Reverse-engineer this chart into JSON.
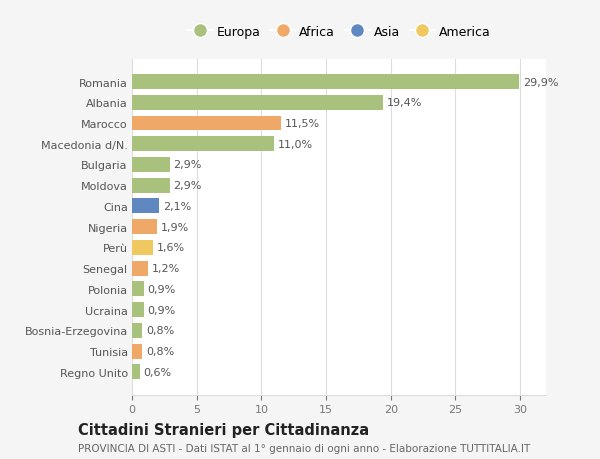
{
  "countries": [
    "Romania",
    "Albania",
    "Marocco",
    "Macedonia d/N.",
    "Bulgaria",
    "Moldova",
    "Cina",
    "Nigeria",
    "Perù",
    "Senegal",
    "Polonia",
    "Ucraina",
    "Bosnia-Erzegovina",
    "Tunisia",
    "Regno Unito"
  ],
  "values": [
    29.9,
    19.4,
    11.5,
    11.0,
    2.9,
    2.9,
    2.1,
    1.9,
    1.6,
    1.2,
    0.9,
    0.9,
    0.8,
    0.8,
    0.6
  ],
  "labels": [
    "29,9%",
    "19,4%",
    "11,5%",
    "11,0%",
    "2,9%",
    "2,9%",
    "2,1%",
    "1,9%",
    "1,6%",
    "1,2%",
    "0,9%",
    "0,9%",
    "0,8%",
    "0,8%",
    "0,6%"
  ],
  "continents": [
    "Europa",
    "Europa",
    "Africa",
    "Europa",
    "Europa",
    "Europa",
    "Asia",
    "Africa",
    "America",
    "Africa",
    "Europa",
    "Europa",
    "Europa",
    "Africa",
    "Europa"
  ],
  "continent_colors": {
    "Europa": "#a8c17c",
    "Africa": "#f0a868",
    "Asia": "#6088c0",
    "America": "#f0c860"
  },
  "legend_order": [
    "Europa",
    "Africa",
    "Asia",
    "America"
  ],
  "title": "Cittadini Stranieri per Cittadinanza",
  "subtitle": "PROVINCIA DI ASTI - Dati ISTAT al 1° gennaio di ogni anno - Elaborazione TUTTITALIA.IT",
  "xlim": [
    0,
    32
  ],
  "xticks": [
    0,
    5,
    10,
    15,
    20,
    25,
    30
  ],
  "bg_color": "#f5f5f5",
  "bar_bg_color": "#ffffff",
  "grid_color": "#dddddd",
  "bar_height": 0.72,
  "label_fontsize": 8.0,
  "ytick_fontsize": 8.0,
  "xtick_fontsize": 8.0,
  "title_fontsize": 10.5,
  "subtitle_fontsize": 7.5,
  "legend_fontsize": 9.0
}
